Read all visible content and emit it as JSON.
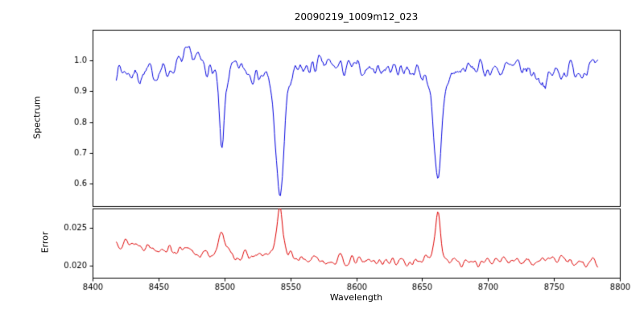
{
  "figure": {
    "title": "20090219_1009m12_023",
    "xlabel": "Wavelength",
    "ylabel_top": "Spectrum",
    "ylabel_bottom": "Error"
  },
  "x_axis": {
    "ticks": [
      8400,
      8450,
      8500,
      8550,
      8600,
      8650,
      8700,
      8750,
      8800
    ],
    "tick_labels": [
      "8400",
      "8450",
      "8500",
      "8550",
      "8600",
      "8650",
      "8700",
      "8750",
      "8800"
    ]
  },
  "chart_data": [
    {
      "type": "line",
      "series_name": "spectrum",
      "color": "#0000dd",
      "xlim": [
        8400,
        8800
      ],
      "ylim": [
        0.527,
        1.1
      ],
      "x_start": 8418,
      "x_end": 8783,
      "x_step": 0.75,
      "yticks": [
        0.6,
        0.7,
        0.8,
        0.9,
        1.0
      ],
      "ytick_labels": [
        "0.6",
        "0.7",
        "0.8",
        "0.9",
        "1.0"
      ],
      "baseline_points": [
        [
          8418,
          0.975
        ],
        [
          8428,
          0.962
        ],
        [
          8438,
          0.952
        ],
        [
          8450,
          0.965
        ],
        [
          8462,
          0.975
        ],
        [
          8470,
          1.005
        ],
        [
          8476,
          1.015
        ],
        [
          8482,
          0.99
        ],
        [
          8492,
          0.975
        ],
        [
          8505,
          0.972
        ],
        [
          8515,
          0.977
        ],
        [
          8528,
          0.965
        ],
        [
          8538,
          0.972
        ],
        [
          8552,
          0.972
        ],
        [
          8565,
          0.978
        ],
        [
          8578,
          0.985
        ],
        [
          8590,
          0.975
        ],
        [
          8602,
          0.97
        ],
        [
          8615,
          0.978
        ],
        [
          8628,
          0.972
        ],
        [
          8640,
          0.978
        ],
        [
          8652,
          0.965
        ],
        [
          8668,
          0.968
        ],
        [
          8680,
          0.972
        ],
        [
          8692,
          0.975
        ],
        [
          8705,
          0.972
        ],
        [
          8718,
          0.97
        ],
        [
          8732,
          0.968
        ],
        [
          8742,
          0.94
        ],
        [
          8750,
          0.958
        ],
        [
          8760,
          0.972
        ],
        [
          8772,
          0.975
        ],
        [
          8783,
          0.968
        ]
      ],
      "absorption_lines": [
        {
          "center": 8498,
          "core_depth": 0.24,
          "core_sigma": 1.8,
          "wing_depth": 0.035,
          "wing_sigma": 5
        },
        {
          "center": 8542,
          "core_depth": 0.37,
          "core_sigma": 3.0,
          "wing_depth": 0.05,
          "wing_sigma": 9
        },
        {
          "center": 8662,
          "core_depth": 0.34,
          "core_sigma": 2.6,
          "wing_depth": 0.045,
          "wing_sigma": 8
        }
      ],
      "extra_dips": [
        {
          "center": 8744,
          "depth": 0.03,
          "sigma": 1.2
        }
      ],
      "noise": {
        "seed": 7,
        "amplitude": 0.055,
        "smooth_passes": 2
      }
    },
    {
      "type": "line",
      "series_name": "error",
      "color": "#dd0000",
      "xlim": [
        8400,
        8800
      ],
      "ylim": [
        0.0184,
        0.0276
      ],
      "x_start": 8418,
      "x_end": 8783,
      "x_step": 0.75,
      "yticks": [
        0.02,
        0.025
      ],
      "ytick_labels": [
        "0.020",
        "0.025"
      ],
      "baseline_points": [
        [
          8418,
          0.0233
        ],
        [
          8430,
          0.023
        ],
        [
          8445,
          0.0226
        ],
        [
          8458,
          0.0222
        ],
        [
          8470,
          0.0219
        ],
        [
          8482,
          0.0216
        ],
        [
          8495,
          0.0214
        ],
        [
          8510,
          0.0213
        ],
        [
          8525,
          0.0212
        ],
        [
          8540,
          0.0211
        ],
        [
          8555,
          0.0209
        ],
        [
          8570,
          0.0208
        ],
        [
          8585,
          0.0207
        ],
        [
          8600,
          0.0206
        ],
        [
          8620,
          0.0206
        ],
        [
          8640,
          0.0206
        ],
        [
          8660,
          0.0206
        ],
        [
          8680,
          0.0205
        ],
        [
          8700,
          0.0205
        ],
        [
          8720,
          0.0206
        ],
        [
          8740,
          0.0207
        ],
        [
          8752,
          0.0209
        ],
        [
          8762,
          0.0206
        ],
        [
          8775,
          0.0206
        ],
        [
          8783,
          0.0205
        ]
      ],
      "peaks": [
        {
          "center": 8498,
          "height": 0.003,
          "sigma": 1.6,
          "wing_height": 0.0006,
          "wing_sigma": 5
        },
        {
          "center": 8542,
          "height": 0.0062,
          "sigma": 2.0,
          "wing_height": 0.0008,
          "wing_sigma": 7
        },
        {
          "center": 8662,
          "height": 0.006,
          "sigma": 1.9,
          "wing_height": 0.0007,
          "wing_sigma": 6
        }
      ],
      "noise": {
        "seed": 13,
        "amplitude": 0.0011,
        "smooth_passes": 2
      }
    }
  ]
}
